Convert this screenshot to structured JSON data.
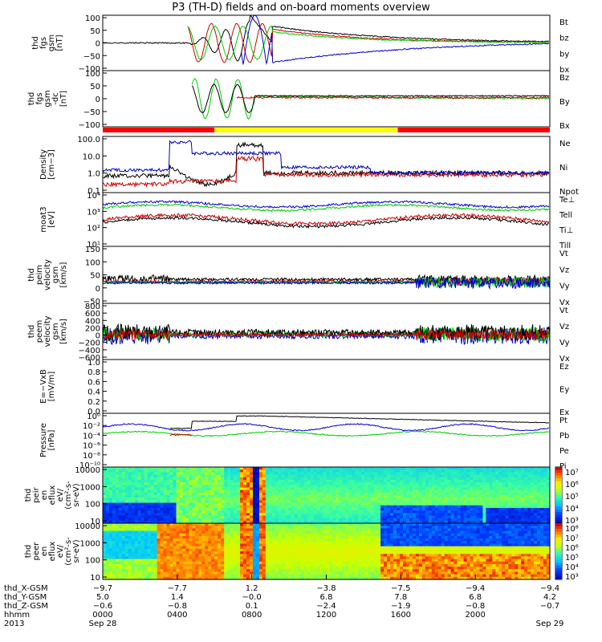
{
  "chart_data": {
    "type": "line",
    "title": "P3 (TH-D) fields and on-board moments overview",
    "panels": [
      {
        "id": "fgs",
        "ylabel": [
          "thd",
          "fgs",
          "gsm",
          "[nT]"
        ],
        "yticks": [
          "100",
          "50",
          "0",
          "−50",
          "−100"
        ],
        "series": [
          {
            "name": "Bt",
            "color": "#000000"
          },
          {
            "name": "bz",
            "color": "#cc0000"
          },
          {
            "name": "by",
            "color": "#00cc00"
          },
          {
            "name": "bx",
            "color": "#0000cc"
          }
        ]
      },
      {
        "id": "fgs_dc",
        "ylabel": [
          "thd",
          "fgs",
          "gsm",
          "-dc",
          "[nT]"
        ],
        "yticks": [
          "100",
          "50",
          "0",
          "−50",
          "−100"
        ],
        "series": [
          {
            "name": "Bz",
            "color": "#cc0000"
          },
          {
            "name": "By",
            "color": "#00cc00"
          },
          {
            "name": "Bx",
            "color": "#000000"
          }
        ]
      },
      {
        "id": "density",
        "ylabel": [
          "Density",
          "[cm−3]"
        ],
        "yticks": [
          "100.0",
          "10.0",
          "1.0",
          "0.1"
        ],
        "series": [
          {
            "name": "Ne",
            "color": "#cc0000"
          },
          {
            "name": "Ni",
            "color": "#000000"
          },
          {
            "name": "Npot",
            "color": "#0000cc"
          }
        ]
      },
      {
        "id": "temp",
        "ylabel": [
          "moat3",
          "[eV]"
        ],
        "yticks": [
          "10⁴",
          "10³",
          "10²",
          "10¹"
        ],
        "series": [
          {
            "name": "Te⊥",
            "color": "#cc0000"
          },
          {
            "name": "Tell",
            "color": "#000000"
          },
          {
            "name": "Ti⊥",
            "color": "#0000cc"
          },
          {
            "name": "Till",
            "color": "#00cc00"
          }
        ]
      },
      {
        "id": "peim_vel",
        "ylabel": [
          "thd",
          "peim",
          "velocity",
          "gsm",
          "[km/s]"
        ],
        "yticks": [
          "150",
          "100",
          "50",
          "0",
          "−50"
        ],
        "series": [
          {
            "name": "Vt",
            "color": "#000000"
          },
          {
            "name": "Vz",
            "color": "#cc0000"
          },
          {
            "name": "Vy",
            "color": "#00cc00"
          },
          {
            "name": "Vx",
            "color": "#0000cc"
          }
        ]
      },
      {
        "id": "peem_vel",
        "ylabel": [
          "thd",
          "peem",
          "velocity",
          "gsm",
          "[km/s]"
        ],
        "yticks": [
          "800",
          "600",
          "400",
          "200",
          "0",
          "−200",
          "−400",
          "−600"
        ],
        "series": [
          {
            "name": "Vt",
            "color": "#000000"
          },
          {
            "name": "Vz",
            "color": "#cc0000"
          },
          {
            "name": "Vy",
            "color": "#00cc00"
          },
          {
            "name": "Vx",
            "color": "#0000cc"
          }
        ]
      },
      {
        "id": "efield",
        "ylabel": [
          "E=−VxB",
          "[mV/m]"
        ],
        "yticks": [
          "1.0",
          "0.8",
          "0.6",
          "0.4",
          "0.2",
          "0.0"
        ],
        "series": [
          {
            "name": "Ez",
            "color": "#cc0000"
          },
          {
            "name": "Ey",
            "color": "#00cc00"
          },
          {
            "name": "Ex",
            "color": "#0000cc"
          }
        ]
      },
      {
        "id": "pressure",
        "ylabel": [
          "Pressure",
          "[nPa]"
        ],
        "yticks": [
          "10⁰",
          "10⁻²",
          "10⁻⁴",
          "10⁻⁶",
          "10⁻⁸",
          "10⁻¹⁰"
        ],
        "series": [
          {
            "name": "Pt",
            "color": "#000000"
          },
          {
            "name": "Pb",
            "color": "#cc0000"
          },
          {
            "name": "Pe",
            "color": "#00cc00"
          },
          {
            "name": "Pi",
            "color": "#0000cc"
          }
        ]
      },
      {
        "id": "peir",
        "ylabel": [
          "thd",
          "peir",
          "en",
          "eflux",
          "eV/",
          "(cm²-s-",
          "sr-eV)"
        ],
        "yticks": [
          "10000",
          "1000",
          "100",
          "10"
        ],
        "cbar": [
          "10⁷",
          "10⁶",
          "10⁵",
          "10⁴",
          "10³"
        ]
      },
      {
        "id": "peer",
        "ylabel": [
          "thd",
          "peer",
          "en",
          "eflux",
          "eV/",
          "(cm²-s-",
          "sr-eV)"
        ],
        "yticks": [
          "10000",
          "1000",
          "100",
          "10"
        ],
        "cbar": [
          "10⁸",
          "10⁷",
          "10⁶",
          "10⁵",
          "10⁴",
          "10³"
        ]
      }
    ],
    "xaxis": {
      "row_labels": [
        "thd_X-GSM",
        "thd_Y-GSM",
        "thd_Z-GSM",
        "hhmm",
        "2013"
      ],
      "ticks": [
        {
          "x": "−9.7",
          "y": "5.0",
          "z": "−0.6",
          "t": "0000",
          "d": "Sep 28"
        },
        {
          "x": "−7.7",
          "y": "1.4",
          "z": "−0.8",
          "t": "0400",
          "d": ""
        },
        {
          "x": "1.2",
          "y": "−0.0",
          "z": "0.1",
          "t": "0800",
          "d": ""
        },
        {
          "x": "−3.8",
          "y": "6.8",
          "z": "−2.4",
          "t": "1200",
          "d": ""
        },
        {
          "x": "−7.5",
          "y": "7.8",
          "z": "−1.9",
          "t": "1600",
          "d": ""
        },
        {
          "x": "−9.4",
          "y": "6.8",
          "z": "−0.8",
          "t": "2000",
          "d": ""
        },
        {
          "x": "−9.4",
          "y": "4.2",
          "z": "−0.7",
          "t": "",
          "d": "Sep 29"
        }
      ]
    }
  }
}
